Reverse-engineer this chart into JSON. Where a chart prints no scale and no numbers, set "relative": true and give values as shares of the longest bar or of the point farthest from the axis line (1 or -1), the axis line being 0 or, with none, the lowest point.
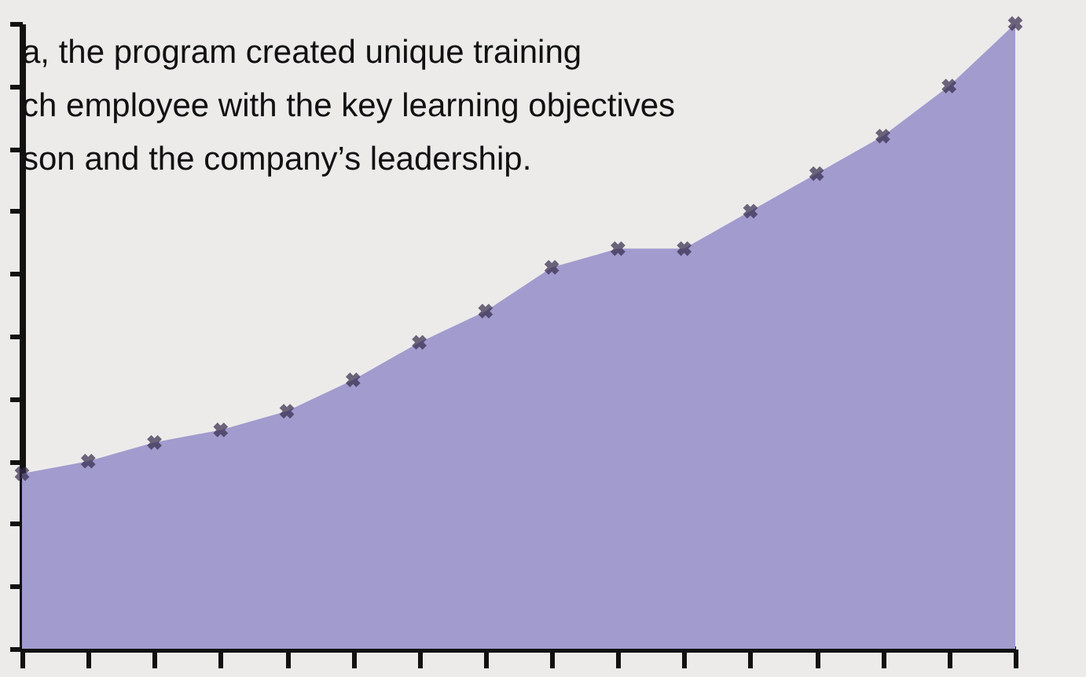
{
  "chart_data": {
    "type": "area",
    "relative": true,
    "marker": "cross",
    "grid": false,
    "categories": [
      null,
      null,
      null,
      null,
      null,
      null,
      null,
      null,
      null,
      null,
      null,
      null,
      null,
      null,
      null,
      null
    ],
    "series": [
      {
        "color": "#a29bce",
        "values": [
          0.28,
          0.3,
          0.33,
          0.35,
          0.38,
          0.43,
          0.49,
          0.54,
          0.61,
          0.64,
          0.64,
          0.7,
          0.76,
          0.82,
          0.9,
          1.0
        ]
      }
    ],
    "annotations": [
      "a, the program created unique training\nch employee with the key learning objectives\nson and the company’s leadership."
    ]
  }
}
